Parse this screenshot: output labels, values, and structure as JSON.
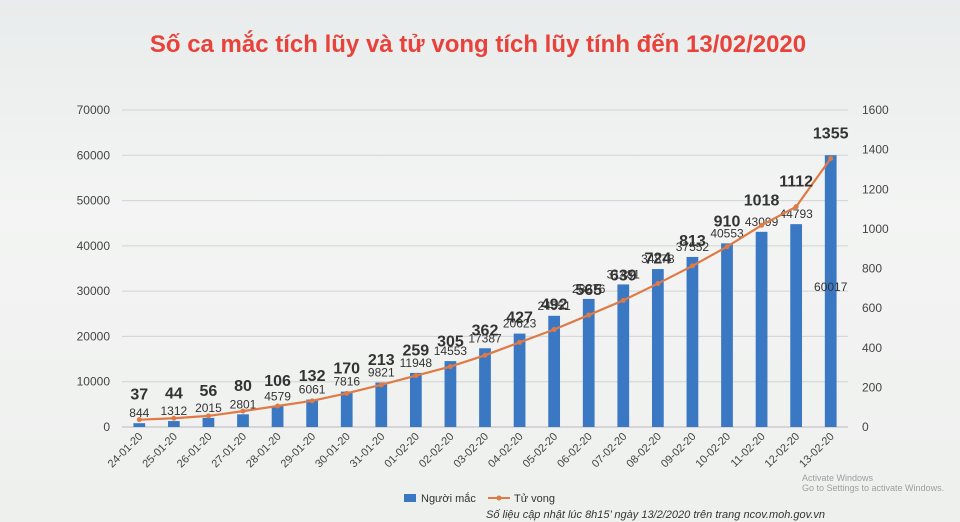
{
  "chart_data": {
    "type": "bar",
    "title": "Số ca mắc tích lũy và tử vong tích lũy tính đến 13/02/2020",
    "categories": [
      "24-01-20",
      "25-01-20",
      "26-01-20",
      "27-01-20",
      "28-01-20",
      "29-01-20",
      "30-01-20",
      "31-01-20",
      "01-02-20",
      "02-02-20",
      "03-02-20",
      "04-02-20",
      "05-02-20",
      "06-02-20",
      "07-02-20",
      "08-02-20",
      "09-02-20",
      "10-02-20",
      "11-02-20",
      "12-02-20",
      "13-02-20"
    ],
    "series": [
      {
        "name": "Người mắc",
        "type": "bar",
        "axis": "left",
        "color": "#3b78c4",
        "values": [
          844,
          1312,
          2015,
          2801,
          4579,
          6061,
          7816,
          9821,
          11948,
          14553,
          17387,
          20623,
          24551,
          28276,
          31481,
          34878,
          37552,
          40553,
          43099,
          44793,
          60017
        ]
      },
      {
        "name": "Tử vong",
        "type": "line",
        "axis": "right",
        "color": "#e07a45",
        "values": [
          37,
          44,
          56,
          80,
          106,
          132,
          170,
          213,
          259,
          305,
          362,
          427,
          492,
          565,
          639,
          724,
          813,
          910,
          1018,
          1112,
          1355
        ]
      }
    ],
    "y_left": {
      "min": 0,
      "max": 70000,
      "ticks": [
        "0",
        "10000",
        "20000",
        "30000",
        "40000",
        "50000",
        "60000",
        "70000"
      ]
    },
    "y_right": {
      "min": 0,
      "max": 1600,
      "ticks": [
        "0",
        "200",
        "400",
        "600",
        "800",
        "1000",
        "1200",
        "1400",
        "1600"
      ]
    },
    "grid": true,
    "legend_position": "bottom"
  },
  "footnote": "Số liệu cập nhật lúc 8h15’ ngày 13/2/2020 trên trang ncov.moh.gov.vn",
  "watermark": {
    "line1": "Activate Windows",
    "line2": "Go to Settings to activate Windows."
  }
}
